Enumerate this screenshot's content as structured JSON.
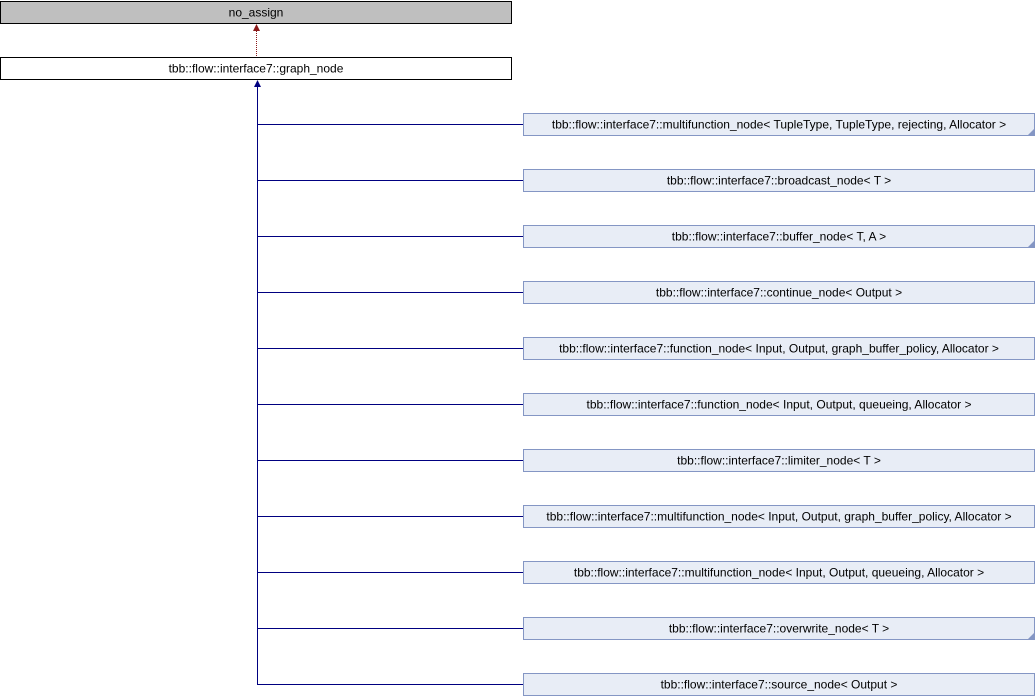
{
  "colors": {
    "base_fill": "#bfbfbf",
    "class_fill": "#ffffff",
    "derived_fill": "#e8edf6",
    "derived_border": "#8496c4",
    "inheritance_edge": "#000080",
    "private_edge": "#8b1a1a"
  },
  "base": {
    "label": "no_assign"
  },
  "current": {
    "label": "tbb::flow::interface7::graph_node"
  },
  "derived": [
    {
      "label": "tbb::flow::interface7::multifunction_node< TupleType, TupleType, rejecting, Allocator >",
      "has_more": true
    },
    {
      "label": "tbb::flow::interface7::broadcast_node< T >",
      "has_more": false
    },
    {
      "label": "tbb::flow::interface7::buffer_node< T, A >",
      "has_more": true
    },
    {
      "label": "tbb::flow::interface7::continue_node< Output >",
      "has_more": false
    },
    {
      "label": "tbb::flow::interface7::function_node< Input, Output, graph_buffer_policy, Allocator >",
      "has_more": false
    },
    {
      "label": "tbb::flow::interface7::function_node< Input, Output, queueing, Allocator >",
      "has_more": false
    },
    {
      "label": "tbb::flow::interface7::limiter_node< T >",
      "has_more": false
    },
    {
      "label": "tbb::flow::interface7::multifunction_node< Input, Output, graph_buffer_policy, Allocator >",
      "has_more": false
    },
    {
      "label": "tbb::flow::interface7::multifunction_node< Input, Output, queueing, Allocator >",
      "has_more": false
    },
    {
      "label": "tbb::flow::interface7::overwrite_node< T >",
      "has_more": true
    },
    {
      "label": "tbb::flow::interface7::source_node< Output >",
      "has_more": false
    }
  ]
}
